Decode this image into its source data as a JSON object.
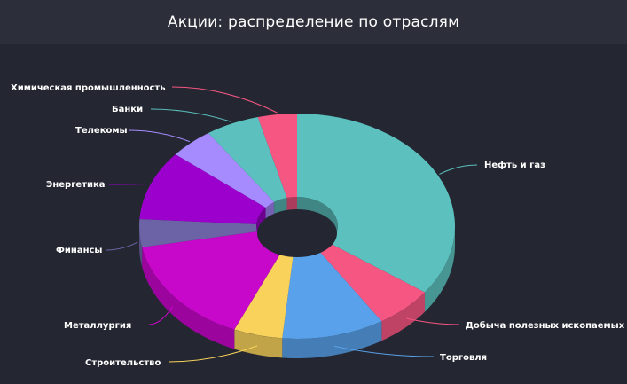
{
  "header": {
    "title": "Акции: распределение по отраслям"
  },
  "chart_data": {
    "type": "pie",
    "style": "3d-donut",
    "title": "Акции: распределение по отраслям",
    "slices": [
      {
        "label": "Нефть и газ",
        "value": 35.0,
        "color": "#5bc0be"
      },
      {
        "label": "Добыча полезных ископаемых",
        "value": 6.0,
        "color": "#f55682"
      },
      {
        "label": "Торговля",
        "value": 10.5,
        "color": "#59a2eb"
      },
      {
        "label": "Строительство",
        "value": 5.0,
        "color": "#f8d25b"
      },
      {
        "label": "Металлургия",
        "value": 15.5,
        "color": "#c707c9"
      },
      {
        "label": "Финансы",
        "value": 4.0,
        "color": "#6b63a5"
      },
      {
        "label": "Энергетика",
        "value": 10.0,
        "color": "#9b00cd"
      },
      {
        "label": "Телекомы",
        "value": 4.5,
        "color": "#a68bff"
      },
      {
        "label": "Банки",
        "value": 5.5,
        "color": "#5bc0be"
      },
      {
        "label": "Химическая промышленность",
        "value": 4.0,
        "color": "#f55682"
      }
    ],
    "legend": "none"
  }
}
